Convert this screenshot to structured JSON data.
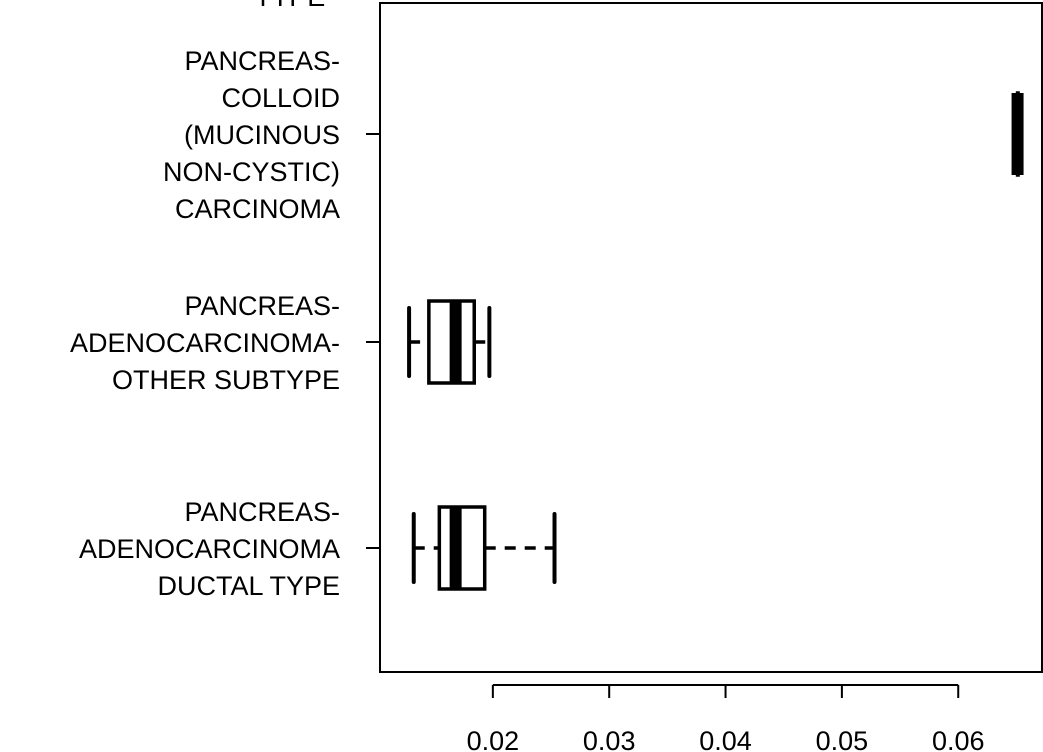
{
  "chart_data": {
    "type": "boxplot",
    "orientation": "horizontal",
    "title": "TYPE",
    "xlim": [
      0.0103,
      0.0672
    ],
    "x_ticks": [
      0.02,
      0.03,
      0.04,
      0.05,
      0.06
    ],
    "x_tick_labels": [
      "0.02",
      "0.03",
      "0.04",
      "0.05",
      "0.06"
    ],
    "grid": false,
    "categories": [
      {
        "label_lines": [
          "PANCREAS-",
          "COLLOID",
          "(MUCINOUS",
          "NON-CYSTIC)",
          "CARCINOMA"
        ],
        "whisker_low": 0.0651,
        "q1": 0.0651,
        "median": 0.0651,
        "q3": 0.0651,
        "whisker_high": 0.0651
      },
      {
        "label_lines": [
          "PANCREAS-",
          "ADENOCARCINOMA-",
          "OTHER SUBTYPE"
        ],
        "whisker_low": 0.0128,
        "q1": 0.0145,
        "median": 0.0168,
        "q3": 0.0184,
        "whisker_high": 0.0197
      },
      {
        "label_lines": [
          "PANCREAS-",
          "ADENOCARCINOMA",
          "DUCTAL TYPE"
        ],
        "whisker_low": 0.0132,
        "q1": 0.0154,
        "median": 0.0168,
        "q3": 0.0193,
        "whisker_high": 0.0253
      }
    ]
  }
}
